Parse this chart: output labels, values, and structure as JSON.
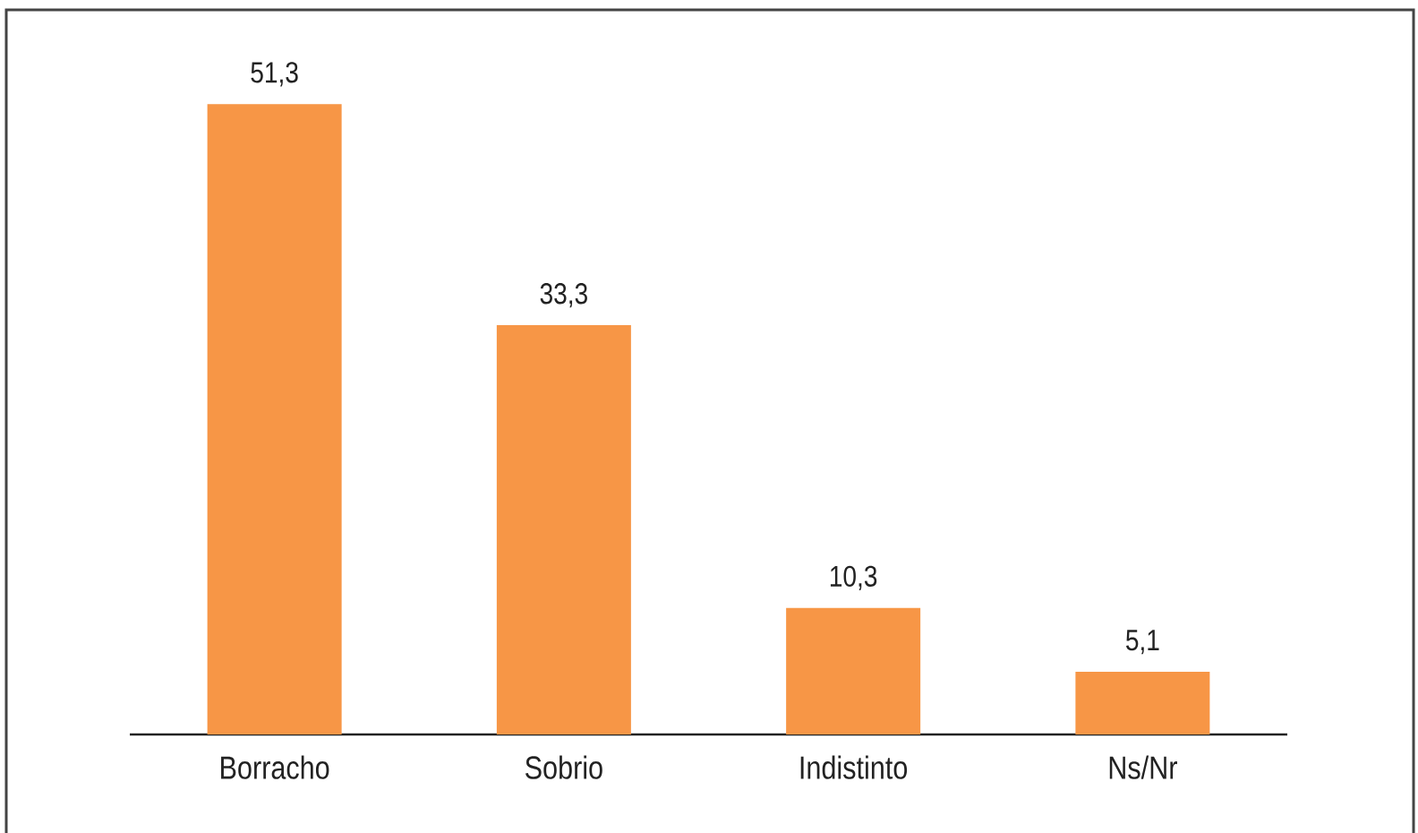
{
  "chart_data": {
    "type": "bar",
    "categories": [
      "Borracho",
      "Sobrio",
      "Indistinto",
      "Ns/Nr"
    ],
    "values": [
      51.3,
      33.3,
      10.3,
      5.1
    ],
    "value_labels": [
      "51,3",
      "33,3",
      "10,3",
      "5,1"
    ],
    "color": "#f79646"
  }
}
